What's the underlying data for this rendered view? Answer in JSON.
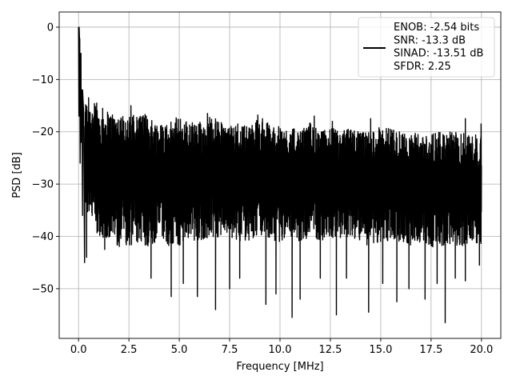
{
  "chart_data": {
    "type": "line",
    "xlabel": "Frequency [MHz]",
    "ylabel": "PSD [dB]",
    "xlim": [
      -0.96,
      20.96
    ],
    "ylim": [
      -59.5,
      2.9
    ],
    "xticks": [
      0.0,
      2.5,
      5.0,
      7.5,
      10.0,
      12.5,
      15.0,
      17.5,
      20.0
    ],
    "xtick_labels": [
      "0.0",
      "2.5",
      "5.0",
      "7.5",
      "10.0",
      "12.5",
      "15.0",
      "17.5",
      "20.0"
    ],
    "yticks": [
      0,
      -10,
      -20,
      -30,
      -40,
      -50
    ],
    "ytick_labels": [
      "0",
      "−10",
      "−20",
      "−30",
      "−40",
      "−50"
    ],
    "grid": true,
    "legend_position": "upper right",
    "line_color": "#000000",
    "legend_entries": [
      "ENOB: -2.54 bits",
      "SNR: -13.3 dB",
      "SINAD: -13.51 dB",
      "SFDR: 2.25"
    ],
    "series": [
      {
        "points": [
          [
            0.0,
            0.0
          ],
          [
            0.02,
            -17.0
          ],
          [
            0.05,
            -2.5
          ],
          [
            0.08,
            -26.0
          ],
          [
            0.1,
            -8.0
          ],
          [
            0.13,
            -22.0
          ],
          [
            0.16,
            -12.0
          ],
          [
            0.2,
            -36.0
          ],
          [
            0.25,
            -16.0
          ],
          [
            0.3,
            -45.0
          ]
        ],
        "envelope_upper": [
          [
            0.5,
            -14.0
          ],
          [
            1.0,
            -15.0
          ],
          [
            1.5,
            -16.0
          ],
          [
            2.0,
            -16.0
          ],
          [
            2.5,
            -17.0
          ],
          [
            3.0,
            -16.0
          ],
          [
            3.5,
            -17.0
          ],
          [
            4.0,
            -18.0
          ],
          [
            4.5,
            -18.0
          ],
          [
            5.0,
            -17.0
          ],
          [
            5.5,
            -18.0
          ],
          [
            6.0,
            -18.0
          ],
          [
            6.5,
            -16.5
          ],
          [
            7.0,
            -18.0
          ],
          [
            7.5,
            -19.0
          ],
          [
            8.0,
            -18.0
          ],
          [
            8.5,
            -19.0
          ],
          [
            9.0,
            -17.0
          ],
          [
            9.5,
            -18.5
          ],
          [
            10.0,
            -19.0
          ],
          [
            10.5,
            -19.0
          ],
          [
            11.0,
            -20.0
          ],
          [
            11.5,
            -18.0
          ],
          [
            12.0,
            -20.0
          ],
          [
            12.5,
            -19.0
          ],
          [
            13.0,
            -20.0
          ],
          [
            13.5,
            -19.0
          ],
          [
            14.0,
            -20.0
          ],
          [
            14.5,
            -20.0
          ],
          [
            15.0,
            -19.0
          ],
          [
            15.5,
            -19.0
          ],
          [
            16.0,
            -20.0
          ],
          [
            16.5,
            -20.5
          ],
          [
            17.0,
            -20.0
          ],
          [
            17.5,
            -20.5
          ],
          [
            18.0,
            -20.0
          ],
          [
            18.5,
            -20.0
          ],
          [
            19.0,
            -20.0
          ],
          [
            19.5,
            -20.0
          ],
          [
            20.0,
            -21.0
          ]
        ],
        "envelope_lower": [
          [
            0.5,
            -36.0
          ],
          [
            1.0,
            -40.0
          ],
          [
            1.5,
            -41.0
          ],
          [
            2.0,
            -42.0
          ],
          [
            2.5,
            -42.0
          ],
          [
            3.0,
            -42.0
          ],
          [
            3.5,
            -42.0
          ],
          [
            4.0,
            -41.0
          ],
          [
            4.5,
            -42.0
          ],
          [
            5.0,
            -42.0
          ],
          [
            5.5,
            -41.0
          ],
          [
            6.0,
            -41.0
          ],
          [
            6.5,
            -41.0
          ],
          [
            7.0,
            -40.0
          ],
          [
            7.5,
            -40.0
          ],
          [
            8.0,
            -41.0
          ],
          [
            8.5,
            -41.0
          ],
          [
            9.0,
            -40.0
          ],
          [
            9.5,
            -41.0
          ],
          [
            10.0,
            -41.0
          ],
          [
            10.5,
            -40.0
          ],
          [
            11.0,
            -41.0
          ],
          [
            11.5,
            -40.0
          ],
          [
            12.0,
            -41.0
          ],
          [
            12.5,
            -40.0
          ],
          [
            13.0,
            -41.0
          ],
          [
            13.5,
            -40.0
          ],
          [
            14.0,
            -41.0
          ],
          [
            14.5,
            -42.0
          ],
          [
            15.0,
            -41.0
          ],
          [
            15.5,
            -41.0
          ],
          [
            16.0,
            -41.0
          ],
          [
            16.5,
            -42.0
          ],
          [
            17.0,
            -41.0
          ],
          [
            17.5,
            -42.0
          ],
          [
            18.0,
            -42.0
          ],
          [
            18.5,
            -42.0
          ],
          [
            19.0,
            -42.0
          ],
          [
            19.5,
            -42.0
          ],
          [
            20.0,
            -42.0
          ]
        ],
        "notable_dips": [
          [
            0.4,
            -44.0
          ],
          [
            1.3,
            -42.5
          ],
          [
            3.6,
            -48.0
          ],
          [
            4.6,
            -51.5
          ],
          [
            5.2,
            -49.0
          ],
          [
            5.9,
            -51.5
          ],
          [
            6.8,
            -54.0
          ],
          [
            7.5,
            -50.0
          ],
          [
            8.0,
            -48.0
          ],
          [
            9.3,
            -53.0
          ],
          [
            9.8,
            -51.0
          ],
          [
            10.6,
            -55.5
          ],
          [
            11.0,
            -52.0
          ],
          [
            12.0,
            -48.0
          ],
          [
            12.8,
            -55.0
          ],
          [
            13.3,
            -48.0
          ],
          [
            14.4,
            -54.5
          ],
          [
            15.1,
            -49.0
          ],
          [
            15.8,
            -52.5
          ],
          [
            16.4,
            -50.0
          ],
          [
            17.2,
            -52.0
          ],
          [
            17.8,
            -49.0
          ],
          [
            18.2,
            -56.5
          ],
          [
            18.7,
            -48.0
          ],
          [
            19.2,
            -48.5
          ],
          [
            19.9,
            -45.5
          ]
        ],
        "notable_peaks": [
          [
            0.03,
            0.0
          ],
          [
            0.06,
            -2.2
          ],
          [
            0.12,
            -5.0
          ],
          [
            0.2,
            -12.0
          ],
          [
            0.5,
            -13.5
          ],
          [
            0.9,
            -14.5
          ],
          [
            2.6,
            -15.0
          ],
          [
            6.4,
            -16.5
          ],
          [
            8.9,
            -16.8
          ],
          [
            11.7,
            -17.0
          ],
          [
            12.6,
            -18.0
          ],
          [
            14.5,
            -17.5
          ],
          [
            19.2,
            -17.5
          ],
          [
            19.98,
            -18.5
          ]
        ]
      }
    ]
  }
}
